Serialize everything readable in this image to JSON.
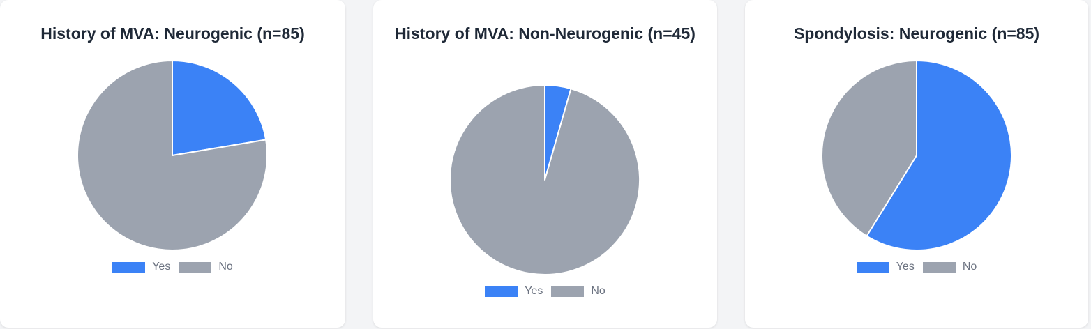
{
  "colors": {
    "yes": "#3b82f6",
    "no": "#9ca3af"
  },
  "legend": {
    "yes": "Yes",
    "no": "No"
  },
  "chart_data": [
    {
      "type": "pie",
      "title": "History of MVA: Neurogenic (n=85)",
      "categories": [
        "Yes",
        "No"
      ],
      "values": [
        19,
        66
      ],
      "colors": [
        "#3b82f6",
        "#9ca3af"
      ],
      "legend": "bottom"
    },
    {
      "type": "pie",
      "title": "History of MVA: Non-Neurogenic (n=45)",
      "categories": [
        "Yes",
        "No"
      ],
      "values": [
        2,
        43
      ],
      "colors": [
        "#3b82f6",
        "#9ca3af"
      ],
      "legend": "bottom"
    },
    {
      "type": "pie",
      "title": "Spondylosis: Neurogenic (n=85)",
      "categories": [
        "Yes",
        "No"
      ],
      "values": [
        50,
        35
      ],
      "colors": [
        "#3b82f6",
        "#9ca3af"
      ],
      "legend": "bottom"
    }
  ]
}
